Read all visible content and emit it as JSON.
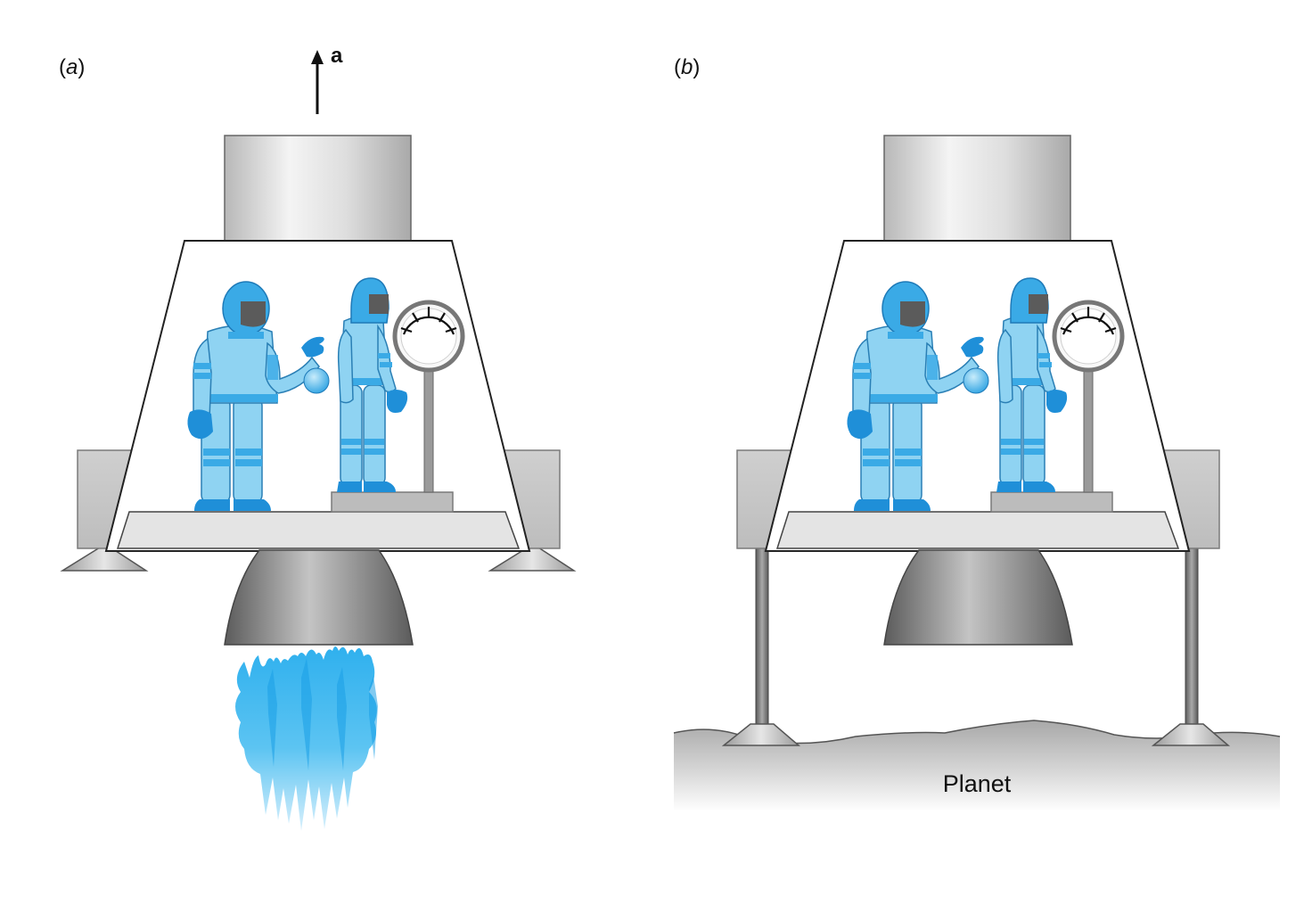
{
  "panels": {
    "a": {
      "label_open": "(",
      "label_letter": "a",
      "label_close": ")"
    },
    "b": {
      "label_open": "(",
      "label_letter": "b",
      "label_close": ")"
    }
  },
  "acceleration": {
    "symbol": "a"
  },
  "ground": {
    "label": "Planet"
  },
  "colors": {
    "suit": "#8fd3f2",
    "suit_dark": "#2a9fe0",
    "metal_light": "#e8e8e8",
    "metal_dark": "#6e6e6e",
    "flame": "#3fb6ee",
    "ground": "#b9b9b9"
  }
}
